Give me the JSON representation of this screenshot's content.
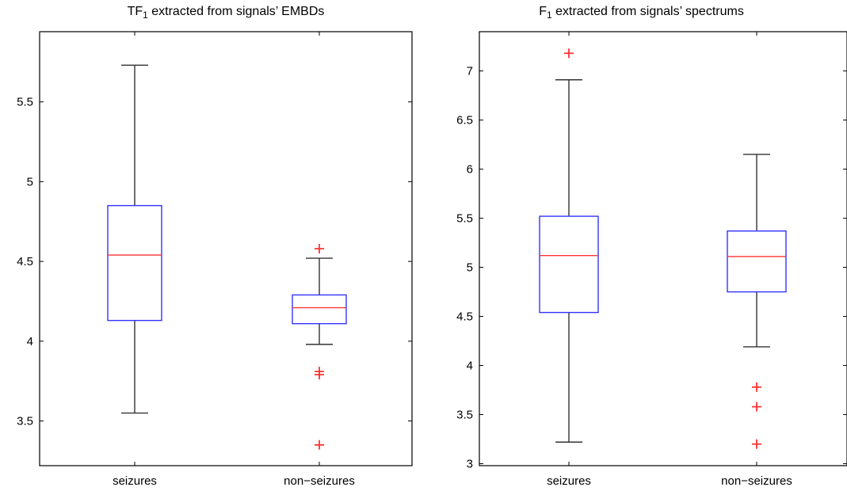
{
  "chart_data": [
    {
      "type": "box",
      "title": {
        "prefix": "TF",
        "sub": "1",
        "rest": " extracted from signals’ EMBDs"
      },
      "categories": [
        "seizures",
        "non−seizures"
      ],
      "ylim": [
        3.22,
        5.94
      ],
      "yticks": [
        3.5,
        4,
        4.5,
        5,
        5.5
      ],
      "ytick_labels": [
        "3.5",
        "4",
        "4.5",
        "5",
        "5.5"
      ],
      "boxes": [
        {
          "min": 3.55,
          "q1": 4.13,
          "median": 4.54,
          "q3": 4.85,
          "max": 5.73,
          "outliers": []
        },
        {
          "min": 3.98,
          "q1": 4.11,
          "median": 4.21,
          "q3": 4.29,
          "max": 4.52,
          "outliers": [
            4.58,
            3.81,
            3.79,
            3.35
          ]
        }
      ],
      "colors": {
        "box": "#3333ff",
        "median": "#ff3333",
        "whisker": "#333333",
        "outlier": "#ff3333"
      }
    },
    {
      "type": "box",
      "title": {
        "prefix": "F",
        "sub": "1",
        "rest": " extracted from signals’ spectrums"
      },
      "categories": [
        "seizures",
        "non−seizures"
      ],
      "ylim": [
        2.98,
        7.4
      ],
      "yticks": [
        3,
        3.5,
        4,
        4.5,
        5,
        5.5,
        6,
        6.5,
        7
      ],
      "ytick_labels": [
        "3",
        "3.5",
        "4",
        "4.5",
        "5",
        "5.5",
        "6",
        "6.5",
        "7"
      ],
      "boxes": [
        {
          "min": 3.22,
          "q1": 4.54,
          "median": 5.12,
          "q3": 5.52,
          "max": 6.91,
          "outliers": [
            7.18
          ]
        },
        {
          "min": 4.19,
          "q1": 4.75,
          "median": 5.11,
          "q3": 5.37,
          "max": 6.15,
          "outliers": [
            3.78,
            3.58,
            3.2
          ]
        }
      ],
      "colors": {
        "box": "#3333ff",
        "median": "#ff3333",
        "whisker": "#333333",
        "outlier": "#ff3333"
      }
    }
  ]
}
